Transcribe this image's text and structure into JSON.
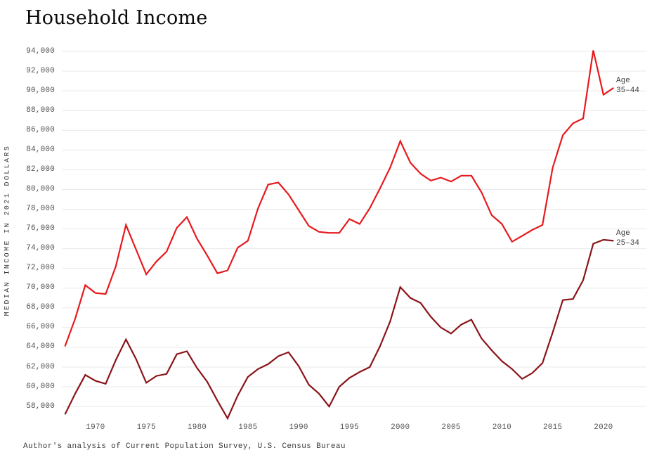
{
  "title": "Household Income",
  "footer": "Author's analysis of Current Population Survey, U.S. Census Bureau",
  "y_axis": {
    "title": "MEDIAN INCOME IN 2021 DOLLARS",
    "tick_min": 58000,
    "tick_max": 94000,
    "tick_step": 2000
  },
  "x_axis": {
    "tick_start": 1970,
    "tick_end": 2020,
    "tick_step": 5
  },
  "colors": {
    "series_35_44": "#e8191d",
    "series_25_34": "#8a1419",
    "gridline": "#e9e9e9",
    "tick_text": "#4e4e4e",
    "background": "#ffffff"
  },
  "chart_data": {
    "type": "line",
    "title": "Household Income",
    "ylabel": "MEDIAN INCOME IN 2021 DOLLARS",
    "xlabel": "",
    "grid": "horizontal",
    "legend_position": "right-of-line-ends",
    "xlim": [
      1967,
      2021
    ],
    "ylim": [
      56500,
      95000
    ],
    "x": [
      1967,
      1968,
      1969,
      1970,
      1971,
      1972,
      1973,
      1974,
      1975,
      1976,
      1977,
      1978,
      1979,
      1980,
      1981,
      1982,
      1983,
      1984,
      1985,
      1986,
      1987,
      1988,
      1989,
      1990,
      1991,
      1992,
      1993,
      1994,
      1995,
      1996,
      1997,
      1998,
      1999,
      2000,
      2001,
      2002,
      2003,
      2004,
      2005,
      2006,
      2007,
      2008,
      2009,
      2010,
      2011,
      2012,
      2013,
      2014,
      2015,
      2016,
      2017,
      2018,
      2019,
      2020,
      2021
    ],
    "series": [
      {
        "name": "Age 35-44",
        "label_lines": [
          "Age",
          "35–44"
        ],
        "color": "#e8191d",
        "values": [
          64100,
          66900,
          70300,
          69500,
          69400,
          72200,
          76400,
          73900,
          71400,
          72700,
          73700,
          76100,
          77200,
          75000,
          73300,
          71500,
          71800,
          74100,
          74800,
          78100,
          80500,
          80700,
          79500,
          77900,
          76300,
          75700,
          75600,
          75600,
          77000,
          76500,
          78100,
          80100,
          82200,
          84900,
          82700,
          81600,
          80900,
          81200,
          80800,
          81400,
          81400,
          79700,
          77400,
          76500,
          74700,
          75300,
          75900,
          76400,
          82200,
          85500,
          86700,
          87200,
          94100,
          89600,
          90300
        ]
      },
      {
        "name": "Age 25-34",
        "label_lines": [
          "Age",
          "25–34"
        ],
        "color": "#8a1419",
        "values": [
          57200,
          59300,
          61200,
          60600,
          60300,
          62700,
          64800,
          62800,
          60400,
          61100,
          61300,
          63300,
          63600,
          61900,
          60500,
          58600,
          56800,
          59100,
          61000,
          61800,
          62300,
          63100,
          63500,
          62100,
          60200,
          59300,
          58000,
          60000,
          60900,
          61500,
          62000,
          64100,
          66600,
          70100,
          69000,
          68500,
          67100,
          66000,
          65400,
          66300,
          66800,
          64900,
          63700,
          62600,
          61800,
          60800,
          61400,
          62400,
          65500,
          68800,
          68900,
          70800,
          74500,
          74900,
          74800
        ]
      }
    ]
  }
}
